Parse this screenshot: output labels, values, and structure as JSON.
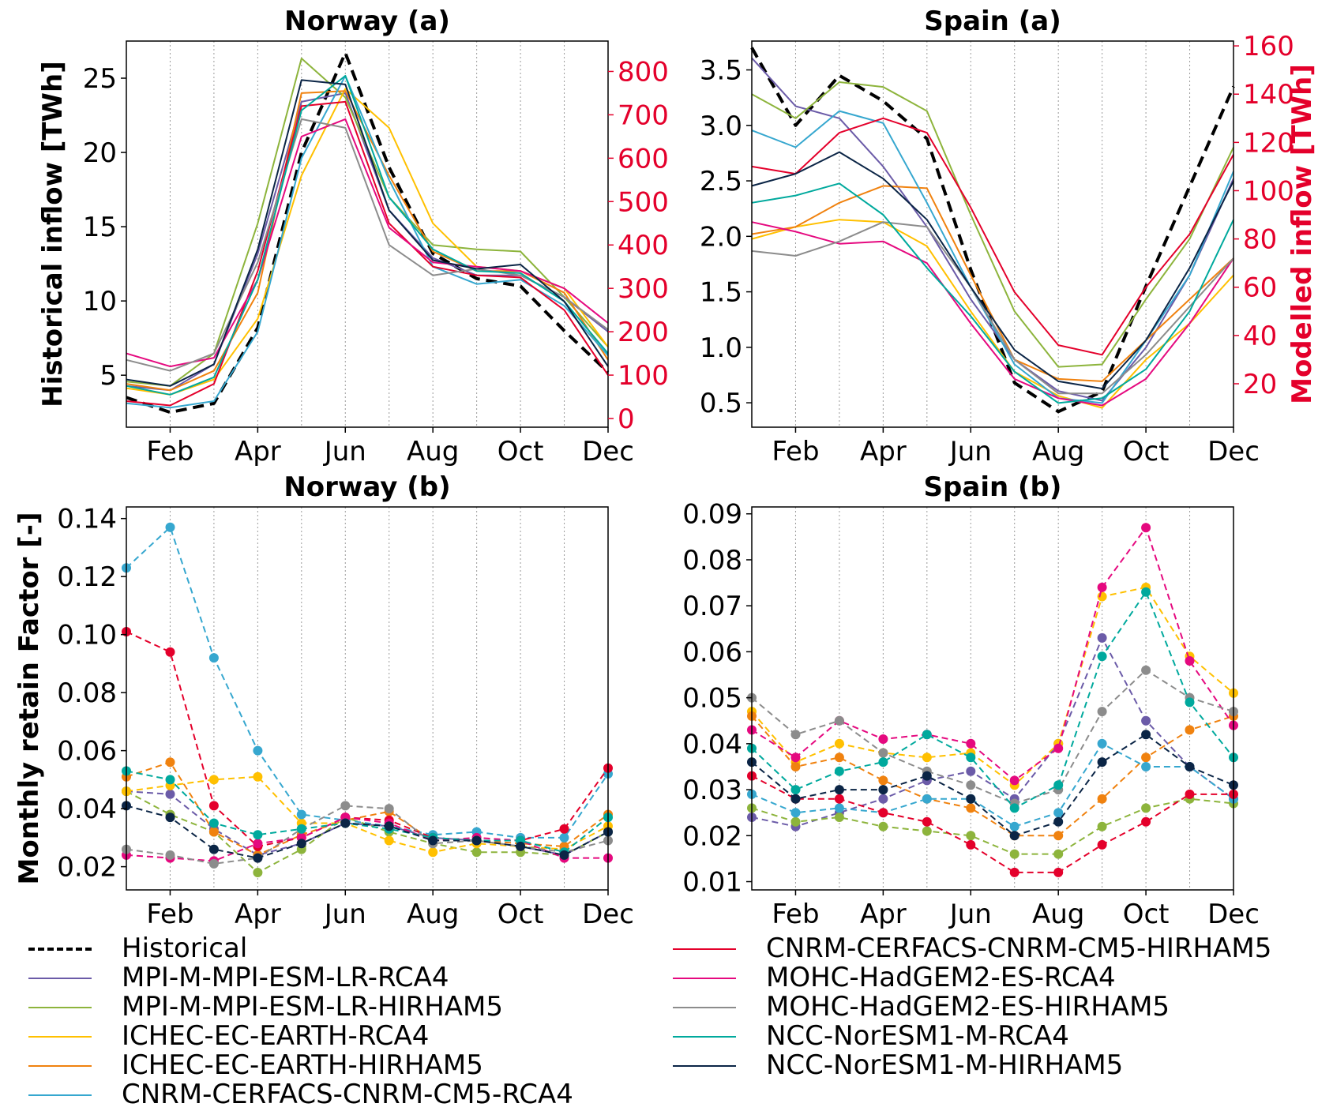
{
  "figure": {
    "series_styles": [
      {
        "key": "historical",
        "name": "Historical",
        "color": "#000000",
        "style": "dashed"
      },
      {
        "key": "mpi_rca4",
        "name": "MPI-M-MPI-ESM-LR-RCA4",
        "color": "#6b5ba8",
        "style": "solid"
      },
      {
        "key": "mpi_hirham5",
        "name": "MPI-M-MPI-ESM-LR-HIRHAM5",
        "color": "#8db43c",
        "style": "solid"
      },
      {
        "key": "ichec_rca4",
        "name": "ICHEC-EC-EARTH-RCA4",
        "color": "#ffc000",
        "style": "solid"
      },
      {
        "key": "ichec_hirham5",
        "name": "ICHEC-EC-EARTH-HIRHAM5",
        "color": "#f0820f",
        "style": "solid"
      },
      {
        "key": "cnrm_rca4",
        "name": "CNRM-CERFACS-CNRM-CM5-RCA4",
        "color": "#36a7cf",
        "style": "solid"
      },
      {
        "key": "cnrm_hirham5",
        "name": "CNRM-CERFACS-CNRM-CM5-HIRHAM5",
        "color": "#e4002b",
        "style": "solid"
      },
      {
        "key": "mohc_rca4",
        "name": "MOHC-HadGEM2-ES-RCA4",
        "color": "#e5097f",
        "style": "solid"
      },
      {
        "key": "mohc_hirham5",
        "name": "MOHC-HadGEM2-ES-HIRHAM5",
        "color": "#8c8c8c",
        "style": "solid"
      },
      {
        "key": "ncc_rca4",
        "name": "NCC-NorESM1-M-RCA4",
        "color": "#00a99d",
        "style": "solid"
      },
      {
        "key": "ncc_hirham5",
        "name": "NCC-NorESM1-M-HIRHAM5",
        "color": "#0b2546",
        "style": "solid"
      }
    ],
    "legend_left": [
      "historical",
      "mpi_rca4",
      "mpi_hirham5",
      "ichec_rca4",
      "ichec_hirham5",
      "cnrm_rca4"
    ],
    "legend_right": [
      "cnrm_hirham5",
      "mohc_rca4",
      "mohc_hirham5",
      "ncc_rca4",
      "ncc_hirham5"
    ],
    "accent_color": "#e4002b"
  },
  "chart_data": [
    {
      "id": "norway_a",
      "type": "line",
      "title": "Norway (a)",
      "ylabel": "Historical inflow [TWh]",
      "y2label": "",
      "x": [
        1,
        2,
        3,
        4,
        5,
        6,
        7,
        8,
        9,
        10,
        11,
        12
      ],
      "x_ticks": [
        "Feb",
        "Apr",
        "Jun",
        "Aug",
        "Oct",
        "Dec"
      ],
      "x_tick_values": [
        2,
        4,
        6,
        8,
        10,
        12
      ],
      "xlim": [
        1,
        12
      ],
      "ylim": [
        1.5,
        27.5
      ],
      "y_ticks": [
        5,
        10,
        15,
        20,
        25
      ],
      "y2lim": [
        -20,
        870
      ],
      "y2_ticks": [
        0,
        100,
        200,
        300,
        400,
        500,
        600,
        700,
        800
      ],
      "grid": "vertical dotted",
      "series": [
        {
          "key": "historical",
          "axis": "left",
          "values": [
            3.5,
            2.5,
            3.1,
            8.2,
            20.0,
            26.7,
            19.0,
            13.2,
            11.5,
            11.0,
            8.0,
            5.2
          ]
        },
        {
          "key": "mpi_rca4",
          "axis": "right",
          "values": [
            75,
            65,
            125,
            380,
            730,
            750,
            480,
            370,
            330,
            330,
            280,
            200
          ]
        },
        {
          "key": "mpi_hirham5",
          "axis": "right",
          "values": [
            85,
            75,
            150,
            450,
            830,
            740,
            510,
            400,
            390,
            385,
            280,
            165
          ]
        },
        {
          "key": "ichec_rca4",
          "axis": "right",
          "values": [
            70,
            55,
            90,
            230,
            560,
            760,
            670,
            450,
            350,
            340,
            300,
            165
          ]
        },
        {
          "key": "ichec_hirham5",
          "axis": "right",
          "values": [
            80,
            65,
            110,
            290,
            750,
            755,
            560,
            385,
            340,
            340,
            290,
            135
          ]
        },
        {
          "key": "cnrm_rca4",
          "axis": "right",
          "values": [
            35,
            25,
            40,
            200,
            600,
            790,
            550,
            350,
            310,
            320,
            260,
            145
          ]
        },
        {
          "key": "cnrm_hirham5",
          "axis": "right",
          "values": [
            40,
            30,
            80,
            340,
            720,
            730,
            450,
            350,
            330,
            325,
            250,
            100
          ]
        },
        {
          "key": "mohc_rca4",
          "axis": "right",
          "values": [
            150,
            120,
            140,
            320,
            650,
            690,
            440,
            360,
            350,
            340,
            300,
            220
          ]
        },
        {
          "key": "mohc_hirham5",
          "axis": "right",
          "values": [
            135,
            110,
            150,
            360,
            690,
            670,
            400,
            330,
            345,
            330,
            280,
            205
          ]
        },
        {
          "key": "ncc_rca4",
          "axis": "right",
          "values": [
            75,
            55,
            95,
            320,
            710,
            790,
            510,
            390,
            340,
            335,
            270,
            150
          ]
        },
        {
          "key": "ncc_hirham5",
          "axis": "right",
          "values": [
            90,
            75,
            125,
            390,
            780,
            770,
            480,
            365,
            345,
            355,
            270,
            120
          ]
        }
      ]
    },
    {
      "id": "spain_a",
      "type": "line",
      "title": "Spain (a)",
      "ylabel": "",
      "y2label": "Modelled inflow [TWh]",
      "x": [
        1,
        2,
        3,
        4,
        5,
        6,
        7,
        8,
        9,
        10,
        11,
        12
      ],
      "x_ticks": [
        "Feb",
        "Apr",
        "Jun",
        "Aug",
        "Oct",
        "Dec"
      ],
      "x_tick_values": [
        2,
        4,
        6,
        8,
        10,
        12
      ],
      "xlim": [
        1,
        12
      ],
      "ylim": [
        0.28,
        3.76
      ],
      "y_ticks": [
        0.5,
        1.0,
        1.5,
        2.0,
        2.5,
        3.0,
        3.5
      ],
      "y2lim": [
        2,
        162
      ],
      "y2_ticks": [
        20,
        40,
        60,
        80,
        100,
        120,
        140,
        160
      ],
      "grid": "vertical dotted",
      "series": [
        {
          "key": "historical",
          "axis": "left",
          "values": [
            3.7,
            3.0,
            3.45,
            3.22,
            2.88,
            1.7,
            0.68,
            0.42,
            0.6,
            1.55,
            2.45,
            3.35
          ]
        },
        {
          "key": "mpi_rca4",
          "axis": "right",
          "values": [
            155,
            135,
            130,
            110,
            85,
            55,
            30,
            17,
            13,
            35,
            65,
            105
          ]
        },
        {
          "key": "mpi_hirham5",
          "axis": "right",
          "values": [
            140,
            130,
            145,
            143,
            133,
            90,
            50,
            27,
            28,
            55,
            80,
            118
          ]
        },
        {
          "key": "ichec_rca4",
          "axis": "right",
          "values": [
            80,
            85,
            88,
            87,
            77,
            50,
            25,
            15,
            10,
            30,
            45,
            65
          ]
        },
        {
          "key": "ichec_hirham5",
          "axis": "right",
          "values": [
            82,
            85,
            95,
            102,
            101,
            65,
            30,
            22,
            21,
            38,
            55,
            72
          ]
        },
        {
          "key": "cnrm_rca4",
          "axis": "right",
          "values": [
            125,
            118,
            133,
            128,
            95,
            60,
            28,
            14,
            12,
            38,
            65,
            108
          ]
        },
        {
          "key": "cnrm_hirham5",
          "axis": "right",
          "values": [
            110,
            107,
            124,
            130,
            124,
            93,
            58,
            36,
            32,
            60,
            82,
            115
          ]
        },
        {
          "key": "mohc_rca4",
          "axis": "right",
          "values": [
            87,
            83,
            78,
            79,
            70,
            45,
            22,
            14,
            11,
            22,
            45,
            72
          ]
        },
        {
          "key": "mohc_hirham5",
          "axis": "right",
          "values": [
            75,
            73,
            79,
            87,
            85,
            60,
            30,
            16,
            16,
            32,
            52,
            72
          ]
        },
        {
          "key": "ncc_rca4",
          "axis": "right",
          "values": [
            95,
            98,
            103,
            90,
            68,
            48,
            25,
            12,
            14,
            26,
            50,
            88
          ]
        },
        {
          "key": "ncc_hirham5",
          "axis": "right",
          "values": [
            102,
            107,
            116,
            105,
            88,
            60,
            34,
            21,
            18,
            38,
            68,
            104
          ]
        }
      ]
    },
    {
      "id": "norway_b",
      "type": "line",
      "title": "Norway (b)",
      "ylabel": "Monthly retain Factor [-]",
      "x": [
        1,
        2,
        3,
        4,
        5,
        6,
        7,
        8,
        9,
        10,
        11,
        12
      ],
      "x_ticks": [
        "Feb",
        "Apr",
        "Jun",
        "Aug",
        "Oct",
        "Dec"
      ],
      "x_tick_values": [
        2,
        4,
        6,
        8,
        10,
        12
      ],
      "xlim": [
        1,
        12
      ],
      "ylim": [
        0.012,
        0.144
      ],
      "y_ticks": [
        0.02,
        0.04,
        0.06,
        0.08,
        0.1,
        0.12,
        0.14
      ],
      "grid": "vertical dotted",
      "series": [
        {
          "key": "mpi_rca4",
          "axis": "left",
          "values": [
            0.046,
            0.045,
            0.033,
            0.024,
            0.028,
            0.035,
            0.034,
            0.03,
            0.029,
            0.027,
            0.024,
            0.032
          ]
        },
        {
          "key": "mpi_hirham5",
          "axis": "left",
          "values": [
            0.046,
            0.038,
            0.032,
            0.018,
            0.026,
            0.037,
            0.032,
            0.028,
            0.025,
            0.025,
            0.024,
            0.032
          ]
        },
        {
          "key": "ichec_rca4",
          "axis": "left",
          "values": [
            0.046,
            0.048,
            0.05,
            0.051,
            0.035,
            0.035,
            0.029,
            0.025,
            0.028,
            0.027,
            0.026,
            0.034
          ]
        },
        {
          "key": "ichec_hirham5",
          "axis": "left",
          "values": [
            0.051,
            0.056,
            0.032,
            0.024,
            0.031,
            0.036,
            0.039,
            0.029,
            0.029,
            0.028,
            0.027,
            0.038
          ]
        },
        {
          "key": "cnrm_rca4",
          "axis": "left",
          "values": [
            0.123,
            0.137,
            0.092,
            0.06,
            0.038,
            0.036,
            0.034,
            0.031,
            0.032,
            0.03,
            0.03,
            0.052
          ]
        },
        {
          "key": "cnrm_hirham5",
          "axis": "left",
          "values": [
            0.101,
            0.094,
            0.041,
            0.027,
            0.03,
            0.037,
            0.036,
            0.03,
            0.029,
            0.029,
            0.033,
            0.054
          ]
        },
        {
          "key": "mohc_rca4",
          "axis": "left",
          "values": [
            0.024,
            0.023,
            0.022,
            0.028,
            0.03,
            0.037,
            0.035,
            0.029,
            0.03,
            0.029,
            0.023,
            0.023
          ]
        },
        {
          "key": "mohc_hirham5",
          "axis": "left",
          "values": [
            0.026,
            0.024,
            0.021,
            0.023,
            0.033,
            0.041,
            0.04,
            0.028,
            0.029,
            0.027,
            0.025,
            0.029
          ]
        },
        {
          "key": "ncc_rca4",
          "axis": "left",
          "values": [
            0.053,
            0.05,
            0.035,
            0.031,
            0.033,
            0.035,
            0.033,
            0.03,
            0.029,
            0.029,
            0.025,
            0.037
          ]
        },
        {
          "key": "ncc_hirham5",
          "axis": "left",
          "values": [
            0.041,
            0.037,
            0.026,
            0.023,
            0.028,
            0.035,
            0.034,
            0.029,
            0.029,
            0.027,
            0.024,
            0.032
          ]
        }
      ]
    },
    {
      "id": "spain_b",
      "type": "line",
      "title": "Spain (b)",
      "ylabel": "",
      "x": [
        1,
        2,
        3,
        4,
        5,
        6,
        7,
        8,
        9,
        10,
        11,
        12
      ],
      "x_ticks": [
        "Feb",
        "Apr",
        "Jun",
        "Aug",
        "Oct",
        "Dec"
      ],
      "x_tick_values": [
        2,
        4,
        6,
        8,
        10,
        12
      ],
      "xlim": [
        1,
        12
      ],
      "ylim": [
        0.0082,
        0.0915
      ],
      "y_ticks": [
        0.01,
        0.02,
        0.03,
        0.04,
        0.05,
        0.06,
        0.07,
        0.08,
        0.09
      ],
      "grid": "vertical dotted",
      "series": [
        {
          "key": "mpi_rca4",
          "axis": "left",
          "values": [
            0.024,
            0.022,
            0.025,
            0.028,
            0.032,
            0.034,
            0.028,
            0.04,
            0.063,
            0.045,
            0.035,
            0.028
          ]
        },
        {
          "key": "mpi_hirham5",
          "axis": "left",
          "values": [
            0.026,
            0.023,
            0.024,
            0.022,
            0.021,
            0.02,
            0.016,
            0.016,
            0.022,
            0.026,
            0.028,
            0.027
          ]
        },
        {
          "key": "ichec_rca4",
          "axis": "left",
          "values": [
            0.047,
            0.036,
            0.04,
            0.038,
            0.037,
            0.038,
            0.031,
            0.04,
            0.072,
            0.074,
            0.059,
            0.051
          ]
        },
        {
          "key": "ichec_hirham5",
          "axis": "left",
          "values": [
            0.046,
            0.035,
            0.037,
            0.032,
            0.028,
            0.026,
            0.02,
            0.02,
            0.028,
            0.037,
            0.043,
            0.046
          ]
        },
        {
          "key": "cnrm_rca4",
          "axis": "left",
          "values": [
            0.029,
            0.025,
            0.026,
            0.025,
            0.028,
            0.028,
            0.022,
            0.025,
            0.04,
            0.035,
            0.035,
            0.028
          ]
        },
        {
          "key": "cnrm_hirham5",
          "axis": "left",
          "values": [
            0.033,
            0.028,
            0.028,
            0.025,
            0.023,
            0.018,
            0.012,
            0.012,
            0.018,
            0.023,
            0.029,
            0.029
          ]
        },
        {
          "key": "mohc_rca4",
          "axis": "left",
          "values": [
            0.043,
            0.037,
            0.045,
            0.041,
            0.042,
            0.04,
            0.032,
            0.039,
            0.074,
            0.087,
            0.058,
            0.044
          ]
        },
        {
          "key": "mohc_hirham5",
          "axis": "left",
          "values": [
            0.05,
            0.042,
            0.045,
            0.038,
            0.034,
            0.031,
            0.027,
            0.03,
            0.047,
            0.056,
            0.05,
            0.047
          ]
        },
        {
          "key": "ncc_rca4",
          "axis": "left",
          "values": [
            0.039,
            0.03,
            0.034,
            0.036,
            0.042,
            0.037,
            0.026,
            0.031,
            0.059,
            0.073,
            0.049,
            0.037
          ]
        },
        {
          "key": "ncc_hirham5",
          "axis": "left",
          "values": [
            0.036,
            0.028,
            0.03,
            0.03,
            0.033,
            0.028,
            0.02,
            0.023,
            0.036,
            0.042,
            0.035,
            0.031
          ]
        }
      ]
    }
  ]
}
